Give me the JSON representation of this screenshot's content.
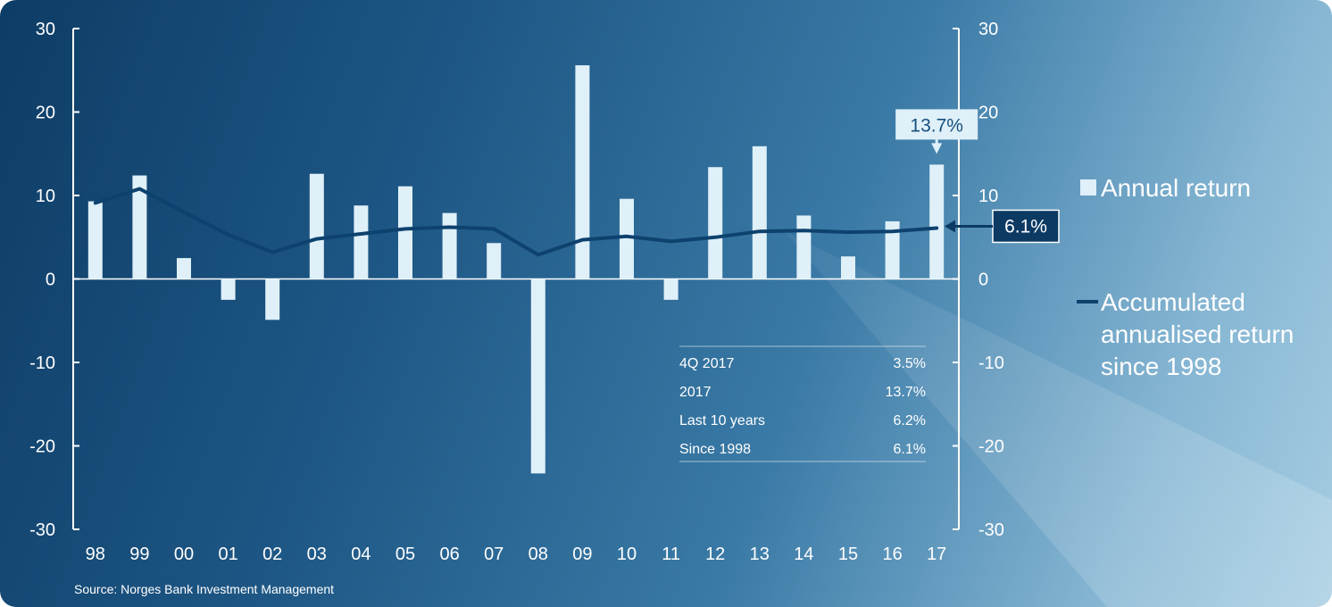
{
  "chart_data": {
    "type": "bar",
    "categories": [
      "98",
      "99",
      "00",
      "01",
      "02",
      "03",
      "04",
      "05",
      "06",
      "07",
      "08",
      "09",
      "10",
      "11",
      "12",
      "13",
      "14",
      "15",
      "16",
      "17"
    ],
    "ylim": [
      -30,
      30
    ],
    "yticks": [
      "30",
      "20",
      "10",
      "0",
      "-10",
      "-20",
      "-30"
    ],
    "series": [
      {
        "name": "Annual return",
        "type": "bar",
        "color": "#dff0f9",
        "values": [
          9.3,
          12.4,
          2.5,
          -2.5,
          -4.9,
          12.6,
          8.8,
          11.1,
          7.9,
          4.3,
          -23.3,
          25.6,
          9.6,
          -2.5,
          13.4,
          15.9,
          7.6,
          2.7,
          6.9,
          13.7
        ]
      },
      {
        "name": "Accumulated annualised return since 1998",
        "type": "line",
        "color": "#0e426e",
        "values": [
          9.1,
          10.8,
          8.0,
          5.3,
          3.2,
          4.8,
          5.4,
          6.0,
          6.2,
          6.0,
          2.9,
          4.7,
          5.1,
          4.5,
          5.0,
          5.7,
          5.8,
          5.6,
          5.7,
          6.1
        ]
      }
    ],
    "callouts": {
      "bar_label": "13.7%",
      "line_label": "6.1%"
    },
    "legend": {
      "bar_label": "Annual return",
      "line_label": "Accumulated annualised return since 1998"
    },
    "summary_table": [
      {
        "period": "4Q 2017",
        "value": "3.5%"
      },
      {
        "period": "2017",
        "value": "13.7%"
      },
      {
        "period": "Last 10 years",
        "value": "6.2%"
      },
      {
        "period": "Since 1998",
        "value": "6.1%"
      }
    ],
    "source": "Source: Norges Bank Investment Management"
  }
}
